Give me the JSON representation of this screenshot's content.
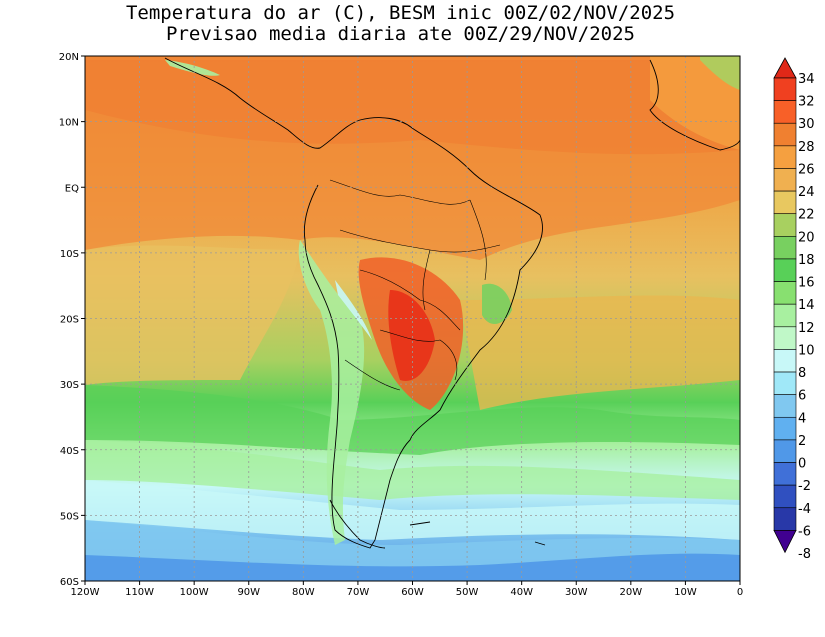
{
  "title": {
    "line1": "Temperatura do ar (C), BESM inic 00Z/02/NOV/2025",
    "line2": "Previsao media diaria ate 00Z/29/NOV/2025"
  },
  "map": {
    "lat_ticks": [
      "20N",
      "10N",
      "EQ",
      "10S",
      "20S",
      "30S",
      "40S",
      "50S",
      "60S"
    ],
    "lat_values": [
      20,
      10,
      0,
      -10,
      -20,
      -30,
      -40,
      -50,
      -60
    ],
    "lon_ticks": [
      "120W",
      "110W",
      "100W",
      "90W",
      "80W",
      "70W",
      "60W",
      "50W",
      "40W",
      "30W",
      "20W",
      "10W",
      "0"
    ],
    "lon_values": [
      -120,
      -110,
      -100,
      -90,
      -80,
      -70,
      -60,
      -50,
      -40,
      -30,
      -20,
      -10,
      0
    ]
  },
  "colorbar": {
    "labels": [
      "34",
      "32",
      "30",
      "28",
      "26",
      "24",
      "22",
      "20",
      "18",
      "16",
      "14",
      "12",
      "10",
      "8",
      "6",
      "4",
      "2",
      "0",
      "-2",
      "-4",
      "-6",
      "-8"
    ],
    "colors": [
      "#e02818",
      "#f04020",
      "#f86028",
      "#f08030",
      "#f5a040",
      "#f0b050",
      "#e8c860",
      "#a8d060",
      "#78d060",
      "#58d058",
      "#88e070",
      "#a8f0a0",
      "#c0f8c8",
      "#c8f8f8",
      "#a0e8f8",
      "#80c8f0",
      "#60b0f0",
      "#5098e8",
      "#4070d8",
      "#3050c0",
      "#2838a8",
      "#400090"
    ]
  }
}
